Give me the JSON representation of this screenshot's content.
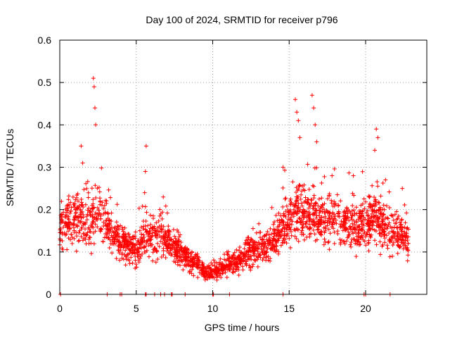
{
  "chart_data": {
    "type": "scatter",
    "title": "Day 100 of 2024, SRMTID for receiver p796",
    "xlabel": "GPS time / hours",
    "ylabel": "SRMTID / TECUs",
    "xlim": [
      0,
      24
    ],
    "ylim": [
      0,
      0.6
    ],
    "x_ticks": [
      0,
      5,
      10,
      15,
      20
    ],
    "x_tick_labels": [
      "0",
      "5",
      "10",
      "15",
      "20"
    ],
    "y_ticks": [
      0,
      0.1,
      0.2,
      0.3,
      0.4,
      0.5,
      0.6
    ],
    "y_tick_labels": [
      "0",
      "0.1",
      "0.2",
      "0.3",
      "0.4",
      "0.5",
      "0.6"
    ],
    "grid": true,
    "marker": "+",
    "marker_color": "#ff0000",
    "profile": [
      [
        0.0,
        0.16
      ],
      [
        0.5,
        0.17
      ],
      [
        1.0,
        0.19
      ],
      [
        1.5,
        0.17
      ],
      [
        2.0,
        0.16
      ],
      [
        2.5,
        0.2
      ],
      [
        3.0,
        0.17
      ],
      [
        3.5,
        0.14
      ],
      [
        4.0,
        0.12
      ],
      [
        4.5,
        0.11
      ],
      [
        5.0,
        0.1
      ],
      [
        5.5,
        0.13
      ],
      [
        6.0,
        0.14
      ],
      [
        6.5,
        0.14
      ],
      [
        7.0,
        0.13
      ],
      [
        7.5,
        0.11
      ],
      [
        8.0,
        0.1
      ],
      [
        8.5,
        0.08
      ],
      [
        9.0,
        0.07
      ],
      [
        9.5,
        0.05
      ],
      [
        10.0,
        0.05
      ],
      [
        10.5,
        0.06
      ],
      [
        11.0,
        0.07
      ],
      [
        11.5,
        0.08
      ],
      [
        12.0,
        0.09
      ],
      [
        12.5,
        0.1
      ],
      [
        13.0,
        0.11
      ],
      [
        13.5,
        0.12
      ],
      [
        14.0,
        0.13
      ],
      [
        14.5,
        0.15
      ],
      [
        15.0,
        0.18
      ],
      [
        15.5,
        0.2
      ],
      [
        16.0,
        0.18
      ],
      [
        16.5,
        0.19
      ],
      [
        17.0,
        0.18
      ],
      [
        17.5,
        0.17
      ],
      [
        18.0,
        0.18
      ],
      [
        18.5,
        0.17
      ],
      [
        19.0,
        0.16
      ],
      [
        19.5,
        0.16
      ],
      [
        20.0,
        0.16
      ],
      [
        20.5,
        0.19
      ],
      [
        21.0,
        0.17
      ],
      [
        21.5,
        0.15
      ],
      [
        22.0,
        0.15
      ],
      [
        22.5,
        0.13
      ],
      [
        22.8,
        0.12
      ]
    ],
    "spikes": [
      [
        2.2,
        0.51
      ],
      [
        2.25,
        0.49
      ],
      [
        2.3,
        0.44
      ],
      [
        2.35,
        0.4
      ],
      [
        1.4,
        0.35
      ],
      [
        1.5,
        0.31
      ],
      [
        5.65,
        0.35
      ],
      [
        5.6,
        0.29
      ],
      [
        5.55,
        0.24
      ],
      [
        15.4,
        0.46
      ],
      [
        15.5,
        0.43
      ],
      [
        15.6,
        0.41
      ],
      [
        15.7,
        0.37
      ],
      [
        16.5,
        0.47
      ],
      [
        16.6,
        0.44
      ],
      [
        16.7,
        0.4
      ],
      [
        16.8,
        0.36
      ],
      [
        20.7,
        0.39
      ],
      [
        20.8,
        0.37
      ],
      [
        20.6,
        0.34
      ],
      [
        14.6,
        0.3
      ],
      [
        17.8,
        0.28
      ],
      [
        19.2,
        0.28
      ],
      [
        21.3,
        0.27
      ],
      [
        22.4,
        0.25
      ]
    ],
    "zero_x": [
      0.05,
      3.1,
      3.95,
      4.05,
      5.6,
      5.65,
      6.2,
      6.6,
      6.85,
      7.3,
      7.35,
      8.2,
      10.0,
      10.05,
      11.1,
      14.6,
      19.9,
      20.0,
      21.6
    ],
    "point_count": 2200,
    "seed": 796
  }
}
